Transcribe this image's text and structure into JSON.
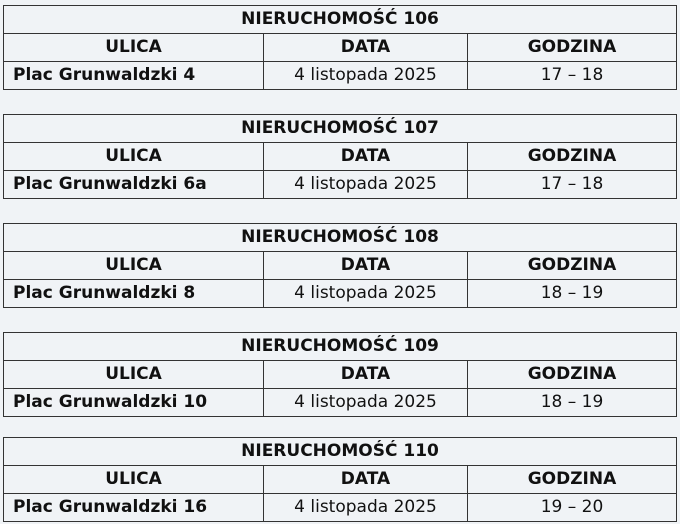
{
  "headers": {
    "street": "ULICA",
    "date": "DATA",
    "time": "GODZINA"
  },
  "properties": [
    {
      "title": "NIERUCHOMOŚĆ 106",
      "street": "Plac Grunwaldzki 4",
      "date": "4 listopada 2025",
      "time": "17 – 18"
    },
    {
      "title": "NIERUCHOMOŚĆ 107",
      "street": "Plac Grunwaldzki 6a",
      "date": "4 listopada 2025",
      "time": "17 – 18"
    },
    {
      "title": "NIERUCHOMOŚĆ 108",
      "street": "Plac Grunwaldzki 8",
      "date": "4 listopada 2025",
      "time": "18 – 19"
    },
    {
      "title": "NIERUCHOMOŚĆ 109",
      "street": "Plac Grunwaldzki 10",
      "date": "4 listopada 2025",
      "time": "18 – 19"
    },
    {
      "title": "NIERUCHOMOŚĆ 110",
      "street": "Plac Grunwaldzki 16",
      "date": "4 listopada 2025",
      "time": "19 – 20"
    }
  ]
}
